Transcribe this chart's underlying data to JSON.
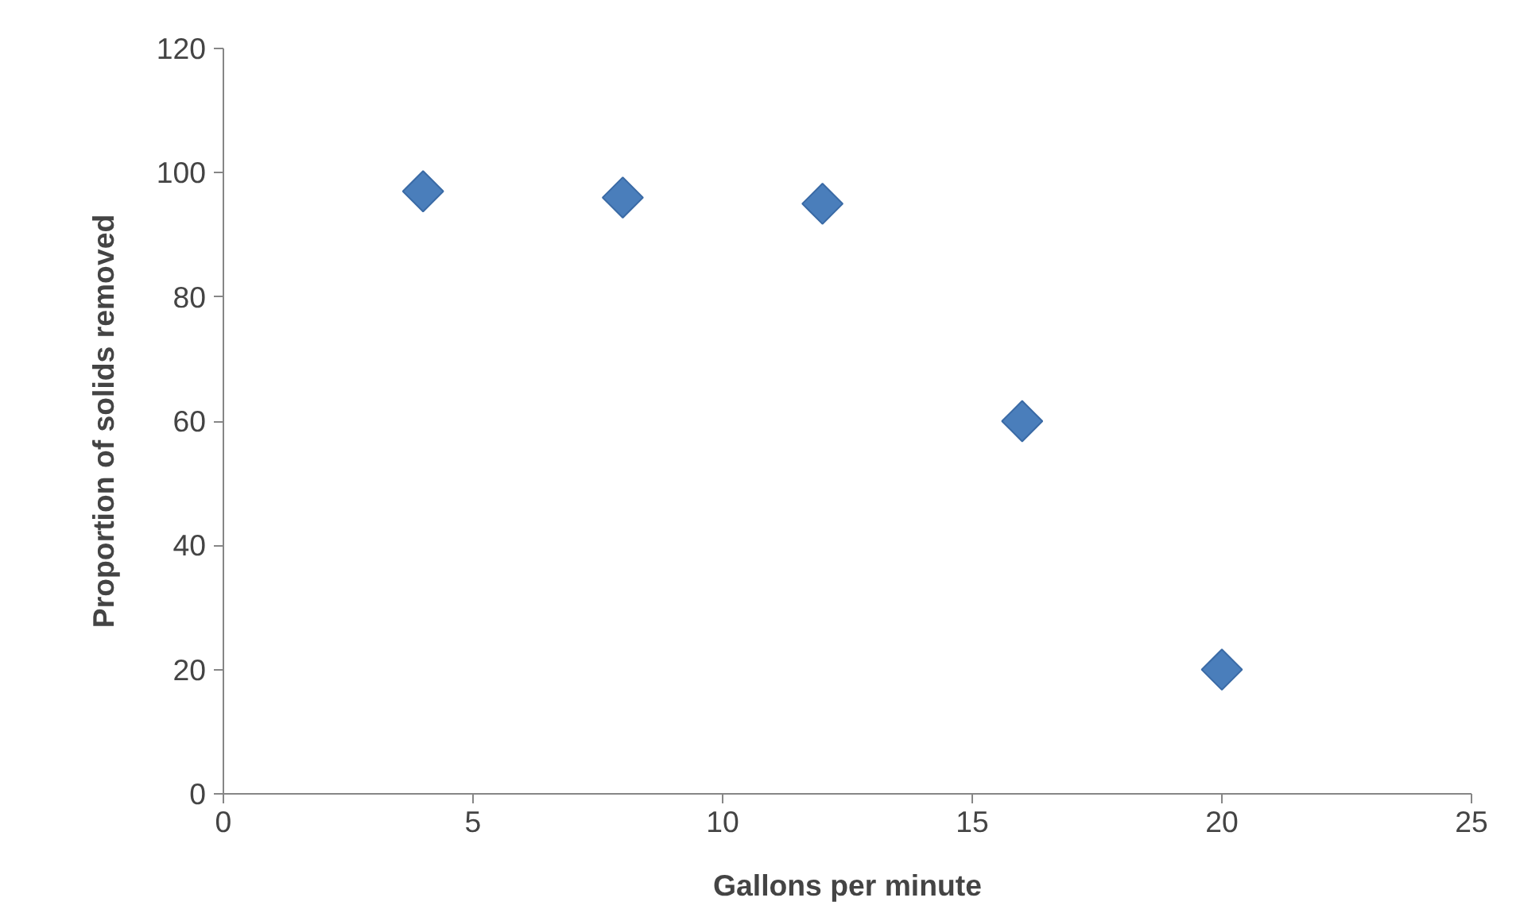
{
  "chart_data": {
    "type": "scatter",
    "xlabel": "Gallons per minute",
    "ylabel": "Proportion of solids removed",
    "x": [
      4,
      8,
      12,
      16,
      20
    ],
    "values": [
      97,
      96,
      95,
      60,
      20
    ],
    "color": "#4a7ebb",
    "marker": "diamond",
    "grid": false,
    "xlim": [
      0,
      25
    ],
    "xticks": [
      0,
      5,
      10,
      15,
      20,
      25
    ],
    "ylim": [
      0,
      120
    ],
    "yticks": [
      0,
      20,
      40,
      60,
      80,
      100,
      120
    ]
  }
}
